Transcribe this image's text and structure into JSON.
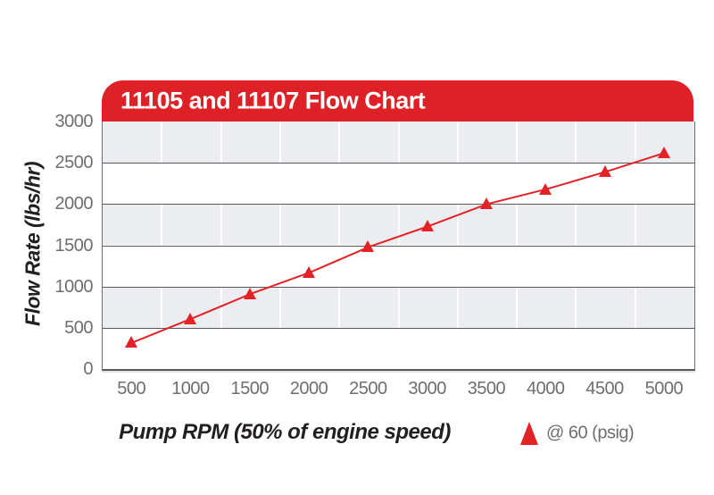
{
  "header": {
    "title": "11105 and 11107 Flow Chart"
  },
  "axes": {
    "y_title": "Flow Rate (lbs/hr)",
    "x_title": "Pump RPM (50% of engine speed)"
  },
  "legend": {
    "marker_icon": "red-triangle-icon",
    "label": "@ 60 (psig)"
  },
  "colors": {
    "accent_red": "#DE2127",
    "marker_red": "#E32226",
    "band_gray": "#ECEDF0",
    "grid_dark": "#58595B",
    "tick_text": "#6D6E71",
    "axis_title_text": "#231F20",
    "title_text": "#FFFFFF"
  },
  "chart_data": {
    "type": "line",
    "title": "11105 and 11107 Flow Chart",
    "xlabel": "Pump RPM (50% of engine speed)",
    "ylabel": "Flow Rate (lbs/hr)",
    "x": [
      500,
      1000,
      1500,
      2000,
      2500,
      3000,
      3500,
      4000,
      4500,
      5000
    ],
    "x_tick_labels": [
      "500",
      "1000",
      "1500",
      "2000",
      "2500",
      "3000",
      "3500",
      "4000",
      "4500",
      "5000"
    ],
    "y_ticks": [
      0,
      500,
      1000,
      1500,
      2000,
      2500,
      3000
    ],
    "y_tick_labels": [
      "0",
      "500",
      "1000",
      "1500",
      "2000",
      "2500",
      "3000"
    ],
    "xlim": [
      250,
      5250
    ],
    "ylim": [
      0,
      3000
    ],
    "series": [
      {
        "name": "@ 60 (psig)",
        "marker": "triangle",
        "color": "#E32226",
        "values": [
          320,
          610,
          910,
          1170,
          1480,
          1730,
          2000,
          2180,
          2390,
          2620
        ]
      }
    ],
    "grid": "horizontal gray/white bands every 500 lbs/hr; dark horizontal rules; light vertical rules midway between x ticks",
    "legend_position": "below-right"
  }
}
